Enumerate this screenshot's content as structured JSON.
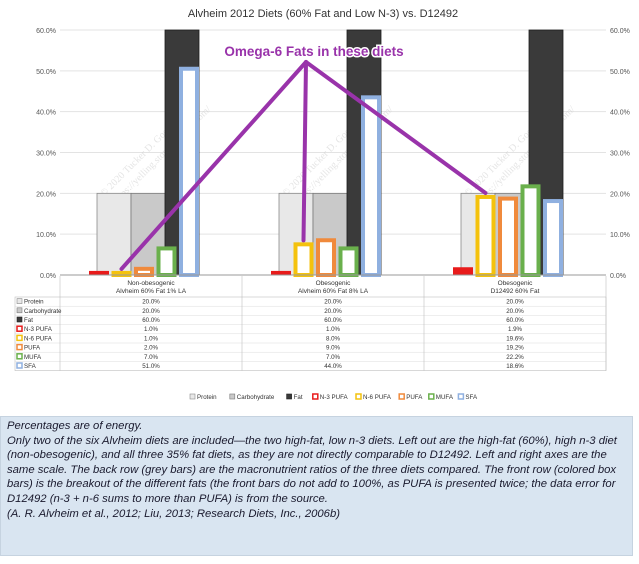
{
  "chart_data": {
    "type": "bar",
    "title": "Alvheim 2012 Diets (60% Fat and Low N-3) vs. D12492",
    "annotation": "Omega-6 Fats in these diets",
    "watermark_lines": [
      "© 2020 Tucker D. Goodrich",
      "https://yelling.stop.blogspot.com/"
    ],
    "ylim": [
      0,
      60
    ],
    "yticks": [
      "0.0%",
      "10.0%",
      "20.0%",
      "30.0%",
      "40.0%",
      "50.0%",
      "60.0%"
    ],
    "grid": true,
    "legend_position": "bottom",
    "categories": [
      {
        "line1": "Non-obesogenic",
        "line2": "Alvheim 60% Fat 1% LA"
      },
      {
        "line1": "Obesogenic",
        "line2": "Alvheim 60% Fat 8% LA"
      },
      {
        "line1": "Obesogenic",
        "line2": "D12492 60% Fat"
      }
    ],
    "series": [
      {
        "name": "Protein",
        "row": "back",
        "color": "#e8e8e8",
        "stroke": "#8a8a8a",
        "values": [
          20.0,
          20.0,
          20.0
        ],
        "labels": [
          "20.0%",
          "20.0%",
          "20.0%"
        ]
      },
      {
        "name": "Carbohydrate",
        "row": "back",
        "color": "#c9c9c9",
        "stroke": "#7a7a7a",
        "values": [
          20.0,
          20.0,
          20.0
        ],
        "labels": [
          "20.0%",
          "20.0%",
          "20.0%"
        ]
      },
      {
        "name": "Fat",
        "row": "back",
        "color": "#3a3a3a",
        "stroke": "#1e1e1e",
        "values": [
          60.0,
          60.0,
          60.0
        ],
        "labels": [
          "60.0%",
          "60.0%",
          "60.0%"
        ]
      },
      {
        "name": "N-3 PUFA",
        "row": "front",
        "color": "#e81b1b",
        "values": [
          1.0,
          1.0,
          1.9
        ],
        "labels": [
          "1.0%",
          "1.0%",
          "1.9%"
        ]
      },
      {
        "name": "N-6 PUFA",
        "row": "front",
        "color": "#f4c20d",
        "values": [
          1.0,
          8.0,
          19.6
        ],
        "labels": [
          "1.0%",
          "8.0%",
          "19.6%"
        ]
      },
      {
        "name": "PUFA",
        "row": "front",
        "color": "#f08a3c",
        "values": [
          2.0,
          9.0,
          19.2
        ],
        "labels": [
          "2.0%",
          "9.0%",
          "19.2%"
        ]
      },
      {
        "name": "MUFA",
        "row": "front",
        "color": "#6ab04c",
        "values": [
          7.0,
          7.0,
          22.2
        ],
        "labels": [
          "7.0%",
          "7.0%",
          "22.2%"
        ]
      },
      {
        "name": "SFA",
        "row": "front",
        "color": "#8fb0e0",
        "values": [
          51.0,
          44.0,
          18.6
        ],
        "labels": [
          "51.0%",
          "44.0%",
          "18.6%"
        ]
      }
    ],
    "arrow_color": "#9933aa"
  },
  "caption": [
    "Percentages are of energy.",
    "Only two of the six Alvheim diets are included—the two high-fat, low n-3 diets. Left out are the high-fat (60%), high n-3 diet (non-obesogenic), and all three 35% fat diets, as they are not directly comparable to D12492. Left and right axes are the same scale. The back row (grey bars) are the macronutrient ratios of the three diets compared. The front row (colored box bars) is the breakout of the different fats (the front bars do not add to 100%, as PUFA is presented twice; the data error for D12492 (n-3 + n-6 sums to more than PUFA) is from the source.",
    "(A. R. Alvheim et al., 2012; Liu, 2013; Research Diets, Inc., 2006b)"
  ]
}
